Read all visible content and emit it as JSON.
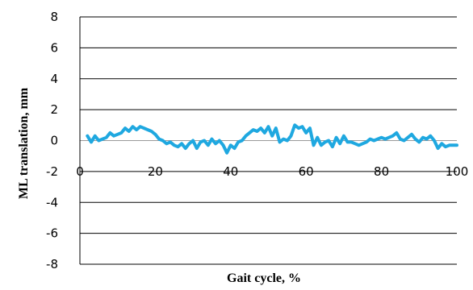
{
  "chart_data": {
    "type": "line",
    "title": "",
    "xlabel": "Gait cycle, %",
    "ylabel": "ML translation, mm",
    "xlim": [
      0,
      100
    ],
    "ylim": [
      -8,
      8
    ],
    "x_ticks": [
      0,
      20,
      40,
      60,
      80,
      100
    ],
    "y_ticks": [
      8,
      6,
      4,
      2,
      0,
      -2,
      -4,
      -6,
      -8
    ],
    "y_tick_labels": [
      "8",
      "6",
      "4",
      "2",
      "0",
      "-2",
      "-4",
      "-6",
      "-8"
    ],
    "x_tick_labels": [
      "0",
      "20",
      "40",
      "60",
      "80",
      "100"
    ],
    "grid": "horizontal",
    "legend": "none",
    "series": [
      {
        "color": "#1fa8e0",
        "x": [
          2,
          3,
          4,
          5,
          6,
          7,
          8,
          9,
          10,
          11,
          12,
          13,
          14,
          15,
          16,
          17,
          18,
          19,
          20,
          21,
          22,
          23,
          24,
          25,
          26,
          27,
          28,
          29,
          30,
          31,
          32,
          33,
          34,
          35,
          36,
          37,
          38,
          39,
          40,
          41,
          42,
          43,
          44,
          45,
          46,
          47,
          48,
          49,
          50,
          51,
          52,
          53,
          54,
          55,
          56,
          57,
          58,
          59,
          60,
          61,
          62,
          63,
          64,
          65,
          66,
          67,
          68,
          69,
          70,
          71,
          72,
          73,
          74,
          75,
          76,
          77,
          78,
          79,
          80,
          81,
          82,
          83,
          84,
          85,
          86,
          87,
          88,
          89,
          90,
          91,
          92,
          93,
          94,
          95,
          96,
          97,
          98,
          99,
          100
        ],
        "y": [
          0.3,
          -0.1,
          0.3,
          0.0,
          0.1,
          0.2,
          0.5,
          0.3,
          0.4,
          0.5,
          0.8,
          0.6,
          0.9,
          0.7,
          0.9,
          0.8,
          0.7,
          0.6,
          0.4,
          0.1,
          0.0,
          -0.2,
          -0.1,
          -0.3,
          -0.4,
          -0.2,
          -0.5,
          -0.2,
          0.0,
          -0.5,
          -0.1,
          0.0,
          -0.3,
          0.1,
          -0.2,
          0.0,
          -0.3,
          -0.8,
          -0.3,
          -0.5,
          -0.1,
          0.0,
          0.3,
          0.5,
          0.7,
          0.6,
          0.8,
          0.5,
          0.9,
          0.3,
          0.8,
          -0.1,
          0.1,
          0.0,
          0.3,
          1.0,
          0.8,
          0.9,
          0.5,
          0.8,
          -0.3,
          0.2,
          -0.3,
          -0.1,
          0.0,
          -0.4,
          0.2,
          -0.2,
          0.3,
          -0.1,
          -0.1,
          -0.2,
          -0.3,
          -0.2,
          -0.1,
          0.1,
          0.0,
          0.1,
          0.2,
          0.1,
          0.2,
          0.3,
          0.5,
          0.1,
          0.0,
          0.2,
          0.4,
          0.1,
          -0.1,
          0.2,
          0.1,
          0.3,
          0.0,
          -0.5,
          -0.2,
          -0.4,
          -0.3,
          -0.3,
          -0.3
        ]
      }
    ]
  }
}
